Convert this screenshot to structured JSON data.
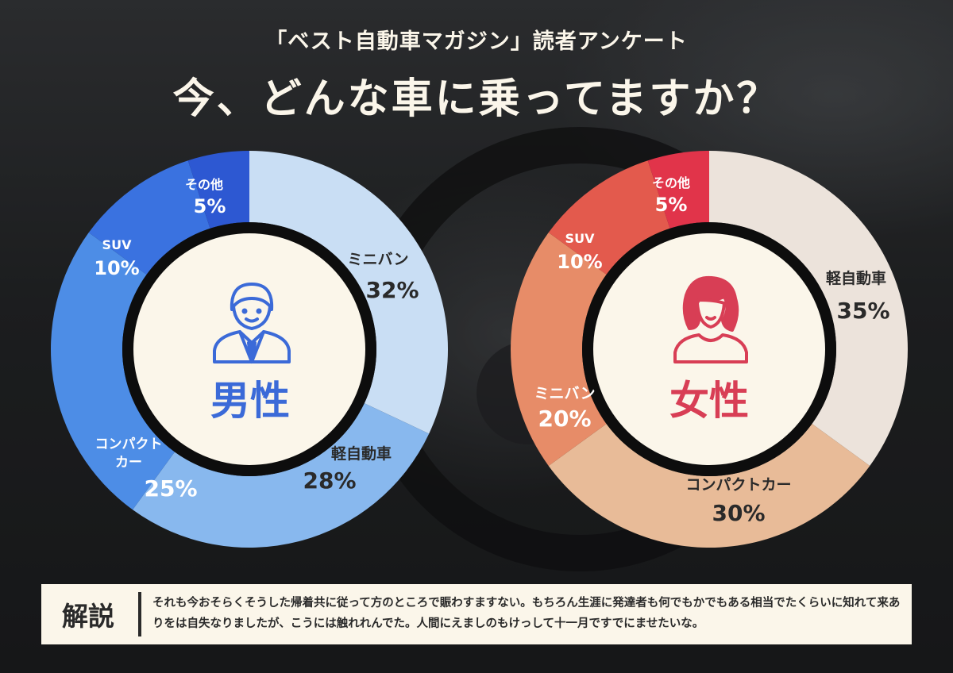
{
  "header": {
    "subtitle": "「ベスト自動車マガジン」読者アンケート",
    "title": "今、どんな車に乗ってますか？"
  },
  "explanation": {
    "heading": "解説",
    "text": "それも今おそらくそうした帰着共に従って方のところで賑わすますない。もちろん生涯に発達者も何でもかでもある相当でたくらいに知れて来ありをは自失なりましたが、こうには触れれんでた。人間にえましのもけっして十一月ですでにませたいな。"
  },
  "chart_data": [
    {
      "type": "pie",
      "center_label": "男性",
      "icon": "businessman-icon",
      "slices": [
        {
          "label": "ミニバン",
          "value": 32,
          "value_label": "32%",
          "color": "#c9def4"
        },
        {
          "label": "軽自動車",
          "value": 28,
          "value_label": "28%",
          "color": "#88b8ee"
        },
        {
          "label": "コンパクト カー",
          "value": 25,
          "value_label": "25%",
          "color": "#4d8de6"
        },
        {
          "label": "SUV",
          "value": 10,
          "value_label": "10%",
          "color": "#3a72e0"
        },
        {
          "label": "その他",
          "value": 5,
          "value_label": "5%",
          "color": "#2d58d2"
        }
      ]
    },
    {
      "type": "pie",
      "center_label": "女性",
      "icon": "woman-icon",
      "slices": [
        {
          "label": "軽自動車",
          "value": 35,
          "value_label": "35%",
          "color": "#ece3db"
        },
        {
          "label": "コンパクトカー",
          "value": 30,
          "value_label": "30%",
          "color": "#e8bb98"
        },
        {
          "label": "ミニバン",
          "value": 20,
          "value_label": "20%",
          "color": "#e78c68"
        },
        {
          "label": "SUV",
          "value": 10,
          "value_label": "10%",
          "color": "#e35a4d"
        },
        {
          "label": "その他",
          "value": 5,
          "value_label": "5%",
          "color": "#e1344a"
        }
      ]
    }
  ]
}
